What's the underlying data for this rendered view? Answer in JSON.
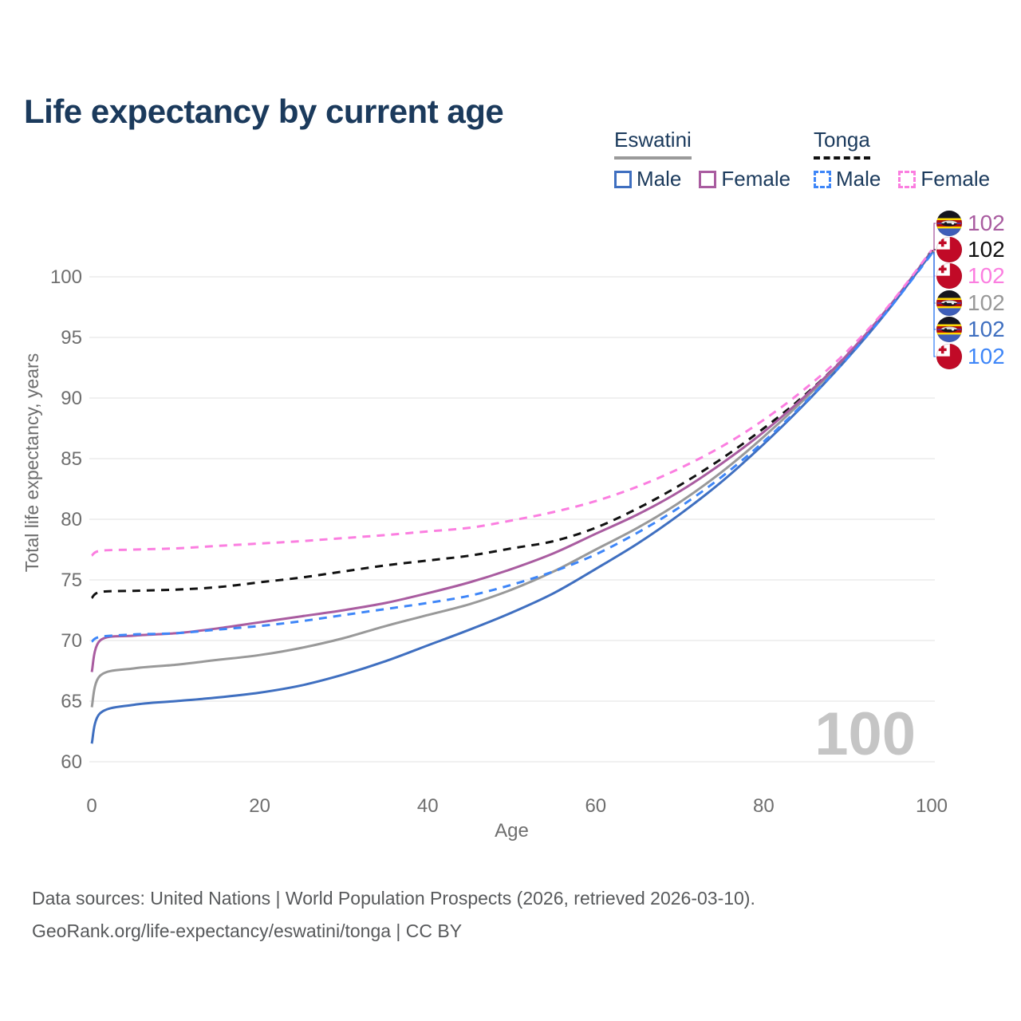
{
  "header": {
    "title": "Life expectancy by current age"
  },
  "legend": {
    "groups": [
      {
        "country": "Eswatini",
        "line_style": "solid",
        "underline_color": "#9a9a9a",
        "items": [
          {
            "label": "Male",
            "color": "#3f6fc0"
          },
          {
            "label": "Female",
            "color": "#a95ca0"
          }
        ]
      },
      {
        "country": "Tonga",
        "line_style": "dashed",
        "underline_color": "#111111",
        "items": [
          {
            "label": "Male",
            "color": "#3e86f8"
          },
          {
            "label": "Female",
            "color": "#fb7ee0"
          }
        ]
      }
    ]
  },
  "chart_data": {
    "type": "line",
    "title": "Life expectancy by current age",
    "xlabel": "Age",
    "ylabel": "Total life expectancy, years",
    "xlim": [
      0,
      100
    ],
    "ylim": [
      60,
      102.5
    ],
    "xticks": [
      0,
      20,
      40,
      60,
      80,
      100
    ],
    "yticks": [
      60,
      65,
      70,
      75,
      80,
      85,
      90,
      95,
      100
    ],
    "grid": "horizontal",
    "legend_position": "top-right",
    "age_watermark": "100",
    "ages": [
      0,
      1,
      5,
      10,
      15,
      20,
      25,
      30,
      35,
      40,
      45,
      50,
      55,
      60,
      65,
      70,
      75,
      80,
      85,
      90,
      95,
      100
    ],
    "series": [
      {
        "name": "Eswatini (both sexes)",
        "country": "Eswatini",
        "sex": "both",
        "color": "#999999",
        "dashed": false,
        "values": [
          64.5,
          67.1,
          67.7,
          68.0,
          68.4,
          68.8,
          69.4,
          70.2,
          71.2,
          72.1,
          73.0,
          74.2,
          75.7,
          77.5,
          79.3,
          81.4,
          83.9,
          86.8,
          90.0,
          93.5,
          97.5,
          102.05
        ]
      },
      {
        "name": "Tonga (both sexes)",
        "country": "Tonga",
        "sex": "both",
        "color": "#111111",
        "dashed": true,
        "values": [
          73.5,
          74.0,
          74.1,
          74.2,
          74.4,
          74.8,
          75.2,
          75.7,
          76.2,
          76.6,
          77.0,
          77.6,
          78.2,
          79.3,
          80.9,
          82.8,
          85.0,
          87.5,
          90.3,
          93.6,
          97.5,
          102.15
        ]
      },
      {
        "name": "Eswatini Female",
        "country": "Eswatini",
        "sex": "female",
        "color": "#a95ca0",
        "dashed": false,
        "values": [
          67.4,
          70.0,
          70.4,
          70.6,
          71.0,
          71.5,
          72.0,
          72.5,
          73.1,
          73.9,
          74.8,
          75.9,
          77.2,
          78.8,
          80.4,
          82.3,
          84.6,
          87.2,
          90.2,
          93.6,
          97.6,
          102.1
        ]
      },
      {
        "name": "Eswatini Male",
        "country": "Eswatini",
        "sex": "male",
        "color": "#3f6fc0",
        "dashed": false,
        "values": [
          61.5,
          64.0,
          64.7,
          65.0,
          65.3,
          65.7,
          66.3,
          67.2,
          68.3,
          69.6,
          70.9,
          72.3,
          73.9,
          75.9,
          78.0,
          80.4,
          83.1,
          86.2,
          89.6,
          93.3,
          97.4,
          102.0
        ]
      },
      {
        "name": "Tonga Male",
        "country": "Tonga",
        "sex": "male",
        "color": "#3e86f8",
        "dashed": true,
        "values": [
          69.9,
          70.3,
          70.5,
          70.6,
          70.9,
          71.2,
          71.6,
          72.1,
          72.6,
          73.1,
          73.7,
          74.6,
          75.7,
          77.1,
          78.9,
          81.0,
          83.5,
          86.4,
          89.7,
          93.3,
          97.4,
          101.9
        ]
      },
      {
        "name": "Tonga Female",
        "country": "Tonga",
        "sex": "female",
        "color": "#fb7ee0",
        "dashed": true,
        "values": [
          77.0,
          77.4,
          77.5,
          77.6,
          77.8,
          78.0,
          78.2,
          78.45,
          78.7,
          79.0,
          79.3,
          79.9,
          80.6,
          81.5,
          82.7,
          84.2,
          86.0,
          88.2,
          90.8,
          93.9,
          97.7,
          102.2
        ]
      }
    ],
    "end_labels": [
      {
        "text": "102",
        "flag": "eswatini",
        "series_index": 2
      },
      {
        "text": "102",
        "flag": "tonga",
        "series_index": 1
      },
      {
        "text": "102",
        "flag": "tonga",
        "series_index": 5
      },
      {
        "text": "102",
        "flag": "eswatini",
        "series_index": 0
      },
      {
        "text": "102",
        "flag": "eswatini",
        "series_index": 3
      },
      {
        "text": "102",
        "flag": "tonga",
        "series_index": 4
      }
    ]
  },
  "footer": {
    "line1": "Data sources: United Nations | World Population Prospects (2026, retrieved 2026-03-10).",
    "line2": "GeoRank.org/life-expectancy/eswatini/tonga | CC BY"
  }
}
